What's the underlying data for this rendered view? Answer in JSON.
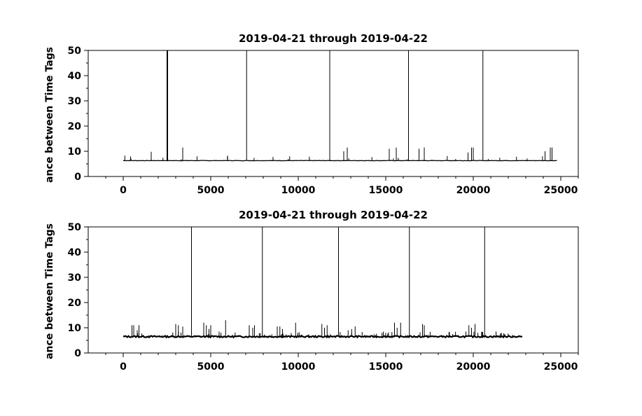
{
  "chart_data": [
    {
      "type": "line",
      "title": "2019-04-21 through 2019-04-22",
      "ylabel": "ance between Time Tags",
      "xlabel": "",
      "xlim": [
        -2000,
        26000
      ],
      "ylim": [
        0,
        50
      ],
      "x_ticks": [
        0,
        5000,
        10000,
        15000,
        20000,
        25000
      ],
      "y_ticks": [
        0,
        10,
        20,
        30,
        40,
        50
      ],
      "grid": false,
      "baseline": 6.3,
      "x_range": [
        0,
        24800
      ],
      "tall_spikes_x": [
        2500,
        2520,
        2540,
        7050,
        11800,
        16300,
        20550
      ],
      "medium_spikes": [
        [
          1600,
          9.8
        ],
        [
          3400,
          11.5
        ],
        [
          12600,
          10
        ],
        [
          12800,
          11.5
        ],
        [
          15200,
          11
        ],
        [
          15600,
          11.5
        ],
        [
          16900,
          11
        ],
        [
          17200,
          11.5
        ],
        [
          19700,
          9.5
        ],
        [
          19900,
          11.5
        ],
        [
          20000,
          11.5
        ],
        [
          24100,
          10
        ],
        [
          24400,
          11.5
        ],
        [
          24500,
          11.5
        ]
      ],
      "series": [
        {
          "values": []
        }
      ]
    },
    {
      "type": "line",
      "title": "2019-04-21 through 2019-04-22",
      "ylabel": "ance between Time Tags",
      "xlabel": "",
      "xlim": [
        -2000,
        26000
      ],
      "ylim": [
        0,
        50
      ],
      "x_ticks": [
        0,
        5000,
        10000,
        15000,
        20000,
        25000
      ],
      "y_ticks": [
        0,
        10,
        20,
        30,
        40,
        50
      ],
      "grid": false,
      "baseline": 6.5,
      "x_range": [
        0,
        22800
      ],
      "tall_spikes_x": [
        3900,
        7950,
        12300,
        16350,
        20650
      ],
      "medium_spikes": [
        [
          500,
          11
        ],
        [
          600,
          11
        ],
        [
          800,
          9
        ],
        [
          900,
          11
        ],
        [
          3000,
          11.5
        ],
        [
          3150,
          11
        ],
        [
          3400,
          10.5
        ],
        [
          4600,
          12
        ],
        [
          4750,
          11
        ],
        [
          4900,
          9.5
        ],
        [
          5000,
          11
        ],
        [
          5850,
          13
        ],
        [
          7200,
          11
        ],
        [
          7400,
          10
        ],
        [
          7500,
          11
        ],
        [
          8800,
          10.5
        ],
        [
          8950,
          10.5
        ],
        [
          9100,
          9.5
        ],
        [
          9850,
          12
        ],
        [
          11350,
          11.5
        ],
        [
          11500,
          10
        ],
        [
          11650,
          11
        ],
        [
          12850,
          9
        ],
        [
          13050,
          9.5
        ],
        [
          13250,
          10.5
        ],
        [
          15500,
          12
        ],
        [
          15650,
          10
        ],
        [
          15850,
          12
        ],
        [
          17100,
          11.5
        ],
        [
          17200,
          11
        ],
        [
          19750,
          11
        ],
        [
          19900,
          10
        ],
        [
          20100,
          11.5
        ],
        [
          21300,
          8.5
        ],
        [
          21600,
          8
        ],
        [
          21800,
          7.5
        ]
      ],
      "series": [
        {
          "values": []
        }
      ]
    }
  ]
}
